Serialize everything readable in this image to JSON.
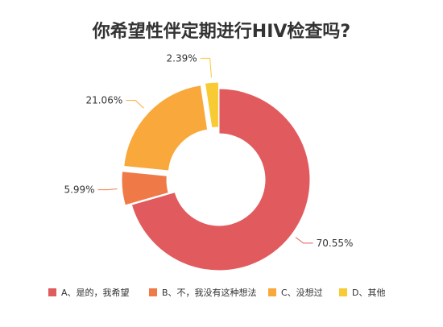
{
  "chart_data": {
    "type": "pie",
    "style": "donut",
    "title": "你希望性伴定期进行HIV检查吗?",
    "legend_position": "bottom",
    "slices": [
      {
        "name": "A、是的，我希望",
        "value": 70.55,
        "label": "70.55%",
        "color": "#e15b5e",
        "exploded": false
      },
      {
        "name": "B、不，我没有这种想法",
        "value": 5.99,
        "label": "5.99%",
        "color": "#ef7a48",
        "exploded": true
      },
      {
        "name": "C、没想过",
        "value": 21.06,
        "label": "21.06%",
        "color": "#f9a83b",
        "exploded": true
      },
      {
        "name": "D、其他",
        "value": 2.39,
        "label": "2.39%",
        "color": "#f8cb34",
        "exploded": true
      }
    ]
  }
}
